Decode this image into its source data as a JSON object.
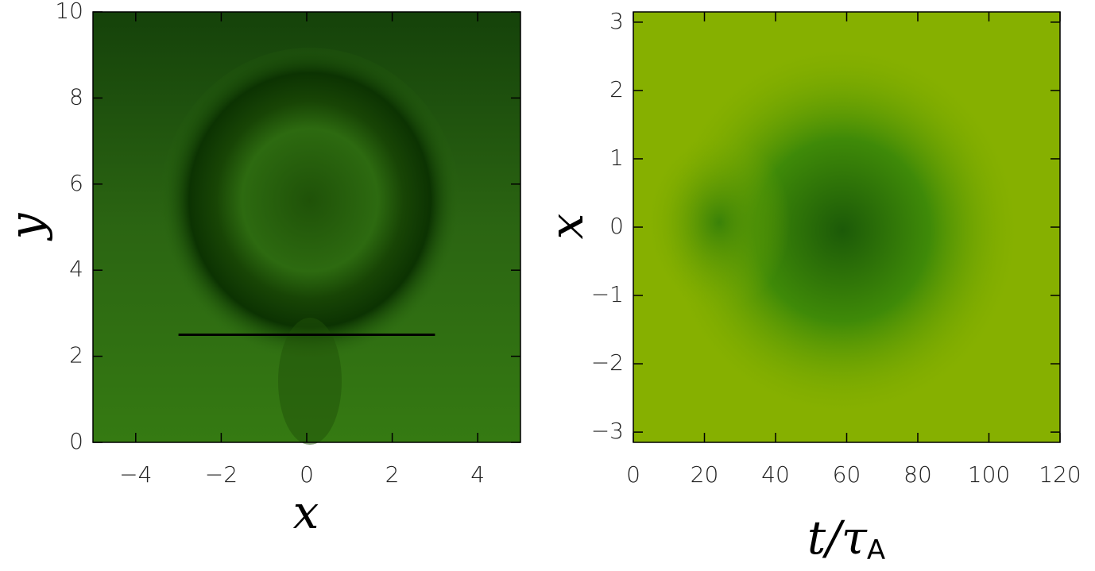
{
  "chart_data": [
    {
      "type": "heatmap",
      "xlabel": "x",
      "ylabel": "y",
      "xlim": [
        -5,
        5
      ],
      "ylim": [
        0,
        10
      ],
      "xticks": [
        {
          "value": -4,
          "label": "−4"
        },
        {
          "value": -2,
          "label": "−2"
        },
        0,
        2,
        4
      ],
      "yticks": [
        0,
        2,
        4,
        6,
        8,
        10
      ],
      "line": {
        "x": [
          -3,
          3
        ],
        "y": [
          2.5,
          2.5
        ],
        "color": "#000000"
      }
    },
    {
      "type": "heatmap",
      "xlabel": "t/τ",
      "xlabel_subscript": "A",
      "ylabel": "x",
      "xlim": [
        0,
        120
      ],
      "ylim": [
        -3.15,
        3.15
      ],
      "xticks": [
        0,
        20,
        40,
        60,
        80,
        100,
        120
      ],
      "yticks": [
        {
          "value": -3,
          "label": "−3"
        },
        {
          "value": -2,
          "label": "−2"
        },
        {
          "value": -1,
          "label": "−1"
        },
        0,
        1,
        2,
        3
      ]
    }
  ]
}
